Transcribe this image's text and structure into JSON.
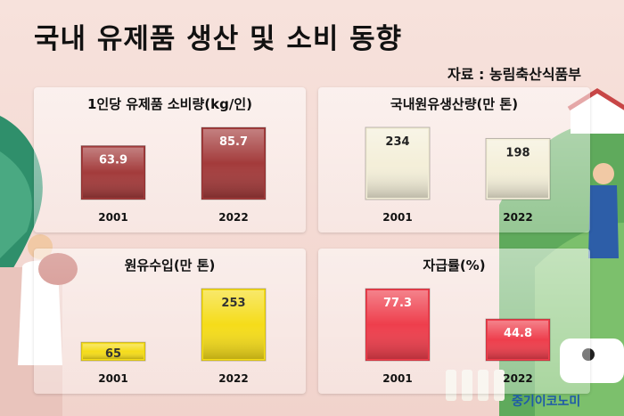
{
  "title": "국내 유제품 생산 및 소비 동향",
  "source": "자료 : 농림축산식품부",
  "brand": "중기이코노미",
  "chart_data": [
    {
      "type": "bar",
      "title": "1인당 유제품 소비량(kg/인)",
      "categories": [
        "2001",
        "2022"
      ],
      "values": [
        63.9,
        85.7
      ],
      "color": "#a33b3b",
      "label_color": "#ffffff"
    },
    {
      "type": "bar",
      "title": "국내원유생산량(만 톤)",
      "categories": [
        "2001",
        "2022"
      ],
      "values": [
        234,
        198
      ],
      "color": "#f4efd9",
      "label_color": "#222222"
    },
    {
      "type": "bar",
      "title": "원유수입(만 톤)",
      "categories": [
        "2001",
        "2022"
      ],
      "values": [
        65,
        253
      ],
      "color": "#f5dc1a",
      "label_color": "#333333"
    },
    {
      "type": "bar",
      "title": "자급률(%)",
      "categories": [
        "2001",
        "2022"
      ],
      "values": [
        77.3,
        44.8
      ],
      "color": "#ee3e4c",
      "label_color": "#ffffff"
    }
  ]
}
